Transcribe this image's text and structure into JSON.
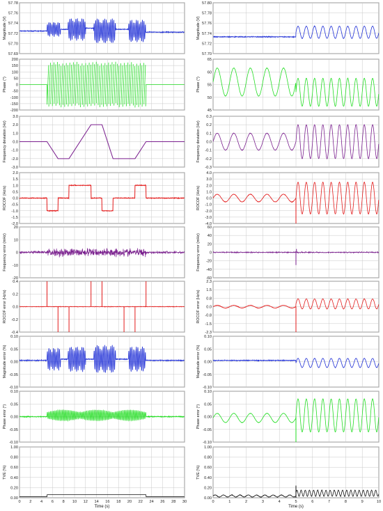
{
  "x_axis_label": "Time (s)",
  "columns": [
    {
      "x_ticks": [
        "0",
        "2",
        "4",
        "6",
        "8",
        "10",
        "12",
        "14",
        "16",
        "18",
        "20",
        "22",
        "24",
        "26",
        "28",
        "30"
      ]
    },
    {
      "x_ticks": [
        "0",
        "1",
        "2",
        "3",
        "4",
        "5",
        "6",
        "7",
        "8",
        "9",
        "10"
      ]
    }
  ],
  "chart_data": [
    {
      "type": "line",
      "ylabel": "Magnitude (V)",
      "xlim": [
        0,
        30
      ],
      "ylim": [
        57.69,
        57.78
      ],
      "y_ticks": [
        "57.78",
        "57.76",
        "57.74",
        "57.72",
        "57.70",
        "57.69"
      ],
      "color": "#1f2fd6",
      "series": [
        {
          "segments": [
            {
              "x_range": [
                0,
                5
              ],
              "baseline": 57.73
            },
            {
              "x_range": [
                5,
                7.5
              ],
              "kind": "oscillation",
              "center": 57.733,
              "amplitude": 0.013
            },
            {
              "x_range": [
                7.5,
                8.8
              ],
              "baseline": 57.733
            },
            {
              "x_range": [
                8.8,
                12
              ],
              "kind": "oscillation",
              "center": 57.733,
              "amplitude": 0.02
            },
            {
              "x_range": [
                12,
                13.5
              ],
              "baseline": 57.735
            },
            {
              "x_range": [
                13.5,
                17.5
              ],
              "kind": "oscillation",
              "center": 57.73,
              "amplitude": 0.022
            },
            {
              "x_range": [
                17.5,
                19.8
              ],
              "baseline": 57.733
            },
            {
              "x_range": [
                19.8,
                22.9
              ],
              "kind": "oscillation",
              "center": 57.73,
              "amplitude": 0.02
            },
            {
              "x_range": [
                22.9,
                30
              ],
              "baseline": 57.728
            }
          ]
        }
      ]
    },
    {
      "type": "line",
      "ylabel": "Phase (°)",
      "xlim": [
        0,
        30
      ],
      "ylim": [
        -200,
        200
      ],
      "y_ticks": [
        "200",
        "150",
        "100",
        "50",
        "0",
        "-50",
        "-100",
        "-150",
        "-200"
      ],
      "color": "#22dd22",
      "series": [
        {
          "segments": [
            {
              "x_range": [
                0,
                5
              ],
              "value": 0
            },
            {
              "x_range": [
                5,
                23
              ],
              "kind": "sawtooth",
              "range": [
                -180,
                180
              ]
            },
            {
              "x_range": [
                23,
                30
              ],
              "value": 0
            }
          ]
        }
      ]
    },
    {
      "type": "line",
      "ylabel": "Frequency deviation (Hz)",
      "xlim": [
        0,
        30
      ],
      "ylim": [
        -3,
        3
      ],
      "y_ticks": [
        "3.0",
        "2.0",
        "1.0",
        "0.0",
        "-1.0",
        "-2.0",
        "-3.0"
      ],
      "color": "#7a1f8e",
      "series": [
        {
          "x": [
            0,
            5,
            7,
            9,
            13,
            15,
            17,
            21,
            23,
            30
          ],
          "y": [
            0,
            0,
            -2,
            -2,
            2,
            2,
            -2,
            -2,
            0,
            0
          ]
        }
      ]
    },
    {
      "type": "line",
      "ylabel": "ROCOF (Hz/s)",
      "xlim": [
        0,
        30
      ],
      "ylim": [
        -2,
        2
      ],
      "y_ticks": [
        "2.0",
        "1.5",
        "1.0",
        "0.5",
        "0.0",
        "-0.5",
        "-1.0",
        "-1.5",
        "-2.0"
      ],
      "color": "#e31a1a",
      "series": [
        {
          "x": [
            0,
            5,
            7,
            9,
            13,
            15,
            17,
            21,
            23,
            30
          ],
          "y": [
            0,
            -1,
            0,
            1,
            0,
            -1,
            0,
            1,
            0,
            0
          ],
          "step": true
        }
      ]
    },
    {
      "type": "line",
      "ylabel": "Frequency error (mHz)",
      "xlim": [
        0,
        30
      ],
      "ylim": [
        -20,
        20
      ],
      "y_ticks": [
        "20",
        "10",
        "0",
        "-10",
        "-20"
      ],
      "color": "#7a1f8e",
      "series": [
        {
          "baseline": 0,
          "noise": [
            {
              "x_range": [
                0,
                5
              ],
              "amplitude": 1.5
            },
            {
              "x_range": [
                5,
                23
              ],
              "amplitude": 4.5
            },
            {
              "x_range": [
                23,
                30
              ],
              "amplitude": 1.5
            }
          ]
        }
      ]
    },
    {
      "type": "line",
      "ylabel": "ROCOF error (Hz/s)",
      "xlim": [
        0,
        30
      ],
      "ylim": [
        -0.4,
        0.4
      ],
      "y_ticks": [
        "0.4",
        "0.2",
        "0.0",
        "-0.2",
        "-0.4"
      ],
      "color": "#e31a1a",
      "series": [
        {
          "baseline": 0,
          "spikes": [
            {
              "x": 5,
              "y": 0.4
            },
            {
              "x": 7,
              "y": -0.4
            },
            {
              "x": 9,
              "y": -0.4
            },
            {
              "x": 13,
              "y": 0.4
            },
            {
              "x": 15,
              "y": 0.4
            },
            {
              "x": 19,
              "y": -0.4
            },
            {
              "x": 21,
              "y": -0.4
            },
            {
              "x": 23,
              "y": 0.4
            }
          ]
        }
      ]
    },
    {
      "type": "line",
      "ylabel": "Magnitude error (%)",
      "xlim": [
        0,
        30
      ],
      "ylim": [
        -0.1,
        0.1
      ],
      "y_ticks": [
        "0.10",
        "0.05",
        "0.00",
        "-0.05",
        "-0.10"
      ],
      "color": "#1f2fd6",
      "series": [
        {
          "segments": [
            {
              "x_range": [
                0,
                5
              ],
              "baseline": 0.005
            },
            {
              "x_range": [
                5,
                7.5
              ],
              "kind": "oscillation",
              "center": 0.01,
              "amplitude": 0.045
            },
            {
              "x_range": [
                7.5,
                8.8
              ],
              "baseline": 0.01
            },
            {
              "x_range": [
                8.8,
                12
              ],
              "kind": "oscillation",
              "center": 0.01,
              "amplitude": 0.05
            },
            {
              "x_range": [
                12,
                13.5
              ],
              "baseline": 0.01
            },
            {
              "x_range": [
                13.5,
                17.5
              ],
              "kind": "oscillation",
              "center": 0.01,
              "amplitude": 0.055
            },
            {
              "x_range": [
                17.5,
                19.8
              ],
              "baseline": 0.01
            },
            {
              "x_range": [
                19.8,
                22.9
              ],
              "kind": "oscillation",
              "center": 0.01,
              "amplitude": 0.05
            },
            {
              "x_range": [
                22.9,
                30
              ],
              "baseline": 0.005
            }
          ]
        }
      ]
    },
    {
      "type": "line",
      "ylabel": "Phase error (°)",
      "xlim": [
        0,
        30
      ],
      "ylim": [
        -0.1,
        0.1
      ],
      "y_ticks": [
        "0.10",
        "0.05",
        "0.00",
        "-0.05",
        "-0.10"
      ],
      "color": "#22dd22",
      "series": [
        {
          "segments": [
            {
              "x_range": [
                0,
                5
              ],
              "baseline": 0
            },
            {
              "x_range": [
                5,
                23
              ],
              "kind": "oscillation",
              "center": 0.005,
              "amplitude": 0.022
            },
            {
              "x_range": [
                23,
                30
              ],
              "baseline": 0
            }
          ]
        }
      ]
    },
    {
      "type": "line",
      "ylabel": "TVE (%)",
      "xlim": [
        0,
        30
      ],
      "ylim": [
        0,
        1
      ],
      "y_ticks": [
        "1.00",
        "0.80",
        "0.60",
        "0.40",
        "0.20",
        "0.00"
      ],
      "color": "#111111",
      "series": [
        {
          "segments": [
            {
              "x_range": [
                0,
                5
              ],
              "value": 0.02
            },
            {
              "x_range": [
                5,
                23
              ],
              "value": 0.06
            },
            {
              "x_range": [
                23,
                30
              ],
              "value": 0.02
            }
          ]
        }
      ]
    },
    {
      "type": "line",
      "ylabel": "Magnitude (V)",
      "xlim": [
        0,
        10
      ],
      "ylim": [
        57.7,
        57.8
      ],
      "y_ticks": [
        "57.80",
        "57.78",
        "57.76",
        "57.74",
        "57.72",
        "57.70"
      ],
      "color": "#1f2fd6",
      "series": [
        {
          "segments": [
            {
              "x_range": [
                0,
                5
              ],
              "baseline": 57.733
            },
            {
              "x_range": [
                5,
                10
              ],
              "kind": "oscillation",
              "center": 57.742,
              "amplitude": 0.012,
              "frequency_hz": 2
            }
          ]
        }
      ]
    },
    {
      "type": "line",
      "ylabel": "Phase (°)",
      "xlim": [
        0,
        10
      ],
      "ylim": [
        45,
        65
      ],
      "y_ticks": [
        "65",
        "60",
        "55",
        "50",
        "45"
      ],
      "color": "#22dd22",
      "series": [
        {
          "segments": [
            {
              "x_range": [
                0,
                5
              ],
              "kind": "oscillation",
              "center": 56,
              "amplitude": 5.5,
              "frequency_hz": 1
            },
            {
              "x_range": [
                5,
                10
              ],
              "kind": "oscillation",
              "center": 52,
              "amplitude": 5.5,
              "frequency_hz": 2
            }
          ]
        }
      ]
    },
    {
      "type": "line",
      "ylabel": "Frequency deviation (Hz)",
      "xlim": [
        0,
        10
      ],
      "ylim": [
        -0.3,
        0.3
      ],
      "y_ticks": [
        "0.3",
        "0.2",
        "0.1",
        "0.0",
        "-0.1",
        "-0.2",
        "-0.3"
      ],
      "color": "#7a1f8e",
      "series": [
        {
          "segments": [
            {
              "x_range": [
                0,
                5
              ],
              "kind": "oscillation",
              "center": 0,
              "amplitude": 0.1,
              "frequency_hz": 1
            },
            {
              "x_range": [
                5,
                10
              ],
              "kind": "oscillation",
              "center": 0,
              "amplitude": 0.2,
              "frequency_hz": 2
            }
          ]
        }
      ]
    },
    {
      "type": "line",
      "ylabel": "ROCOF (Hz/s)",
      "xlim": [
        0,
        10
      ],
      "ylim": [
        -4,
        4
      ],
      "y_ticks": [
        "4.0",
        "3.0",
        "2.0",
        "1.0",
        "0.0",
        "-1.0",
        "-2.0",
        "-3.0",
        "-4.0"
      ],
      "color": "#e31a1a",
      "series": [
        {
          "segments": [
            {
              "x_range": [
                0,
                5
              ],
              "kind": "oscillation",
              "center": 0,
              "amplitude": 0.6,
              "frequency_hz": 1
            },
            {
              "x_range": [
                5,
                10
              ],
              "kind": "oscillation",
              "center": 0,
              "amplitude": 2.5,
              "frequency_hz": 2
            }
          ],
          "spikes": [
            {
              "x": 5,
              "y": -4
            }
          ]
        }
      ]
    },
    {
      "type": "line",
      "ylabel": "Frequency error (mHz)",
      "xlim": [
        0,
        10
      ],
      "ylim": [
        -60,
        60
      ],
      "y_ticks": [
        "60",
        "40",
        "20",
        "0",
        "-20",
        "-40",
        "-60"
      ],
      "color": "#7a1f8e",
      "series": [
        {
          "baseline": 0,
          "noise": [
            {
              "x_range": [
                0,
                10
              ],
              "amplitude": 2
            }
          ],
          "spikes": [
            {
              "x": 5,
              "y": -30
            },
            {
              "x": 5.03,
              "y": 8
            }
          ]
        }
      ]
    },
    {
      "type": "line",
      "ylabel": "ROCOF error (Hz/s)",
      "xlim": [
        0,
        10
      ],
      "ylim": [
        -2.3,
        2.3
      ],
      "y_ticks": [
        "2.3",
        "1.5",
        "0.8",
        "0.0",
        "-0.8",
        "-1.5",
        "-2.3"
      ],
      "color": "#e31a1a",
      "series": [
        {
          "segments": [
            {
              "x_range": [
                0,
                5
              ],
              "kind": "oscillation",
              "center": 0,
              "amplitude": 0.12,
              "frequency_hz": 1
            },
            {
              "x_range": [
                5,
                10
              ],
              "kind": "oscillation",
              "center": 0.25,
              "amplitude": 0.45,
              "frequency_hz": 2
            }
          ],
          "spikes": [
            {
              "x": 5,
              "y": -2.3
            }
          ]
        }
      ]
    },
    {
      "type": "line",
      "ylabel": "Magnitude error (%)",
      "xlim": [
        0,
        10
      ],
      "ylim": [
        -0.1,
        0.1
      ],
      "y_ticks": [
        "0.10",
        "0.05",
        "0.00",
        "-0.05",
        "-0.10"
      ],
      "color": "#1f2fd6",
      "series": [
        {
          "segments": [
            {
              "x_range": [
                0,
                5
              ],
              "baseline": 0.005
            },
            {
              "x_range": [
                5,
                10
              ],
              "kind": "oscillation",
              "center": -0.005,
              "amplitude": 0.018,
              "frequency_hz": 2
            }
          ]
        }
      ]
    },
    {
      "type": "line",
      "ylabel": "Phase error (°)",
      "xlim": [
        0,
        10
      ],
      "ylim": [
        -0.1,
        0.1
      ],
      "y_ticks": [
        "0.10",
        "0.05",
        "0.00",
        "-0.05",
        "-0.10"
      ],
      "color": "#22dd22",
      "series": [
        {
          "segments": [
            {
              "x_range": [
                0,
                5
              ],
              "kind": "oscillation",
              "center": -0.005,
              "amplitude": 0.018,
              "frequency_hz": 1
            },
            {
              "x_range": [
                5,
                10
              ],
              "kind": "oscillation",
              "center": 0.005,
              "amplitude": 0.065,
              "frequency_hz": 2
            }
          ],
          "spikes": [
            {
              "x": 5,
              "y": -0.1
            }
          ]
        }
      ]
    },
    {
      "type": "line",
      "ylabel": "TVE (%)",
      "xlim": [
        0,
        10
      ],
      "ylim": [
        0,
        1
      ],
      "y_ticks": [
        "1.00",
        "0.80",
        "0.60",
        "0.40",
        "0.20",
        "0.00"
      ],
      "color": "#111111",
      "series": [
        {
          "segments": [
            {
              "x_range": [
                0,
                5
              ],
              "kind": "oscillation",
              "center": 0.035,
              "amplitude": 0.02,
              "frequency_hz": 2
            },
            {
              "x_range": [
                5,
                10
              ],
              "kind": "oscillation",
              "center": 0.09,
              "amplitude": 0.06,
              "frequency_hz": 4
            }
          ],
          "spikes": [
            {
              "x": 5,
              "y": 0.24
            }
          ]
        }
      ]
    }
  ]
}
